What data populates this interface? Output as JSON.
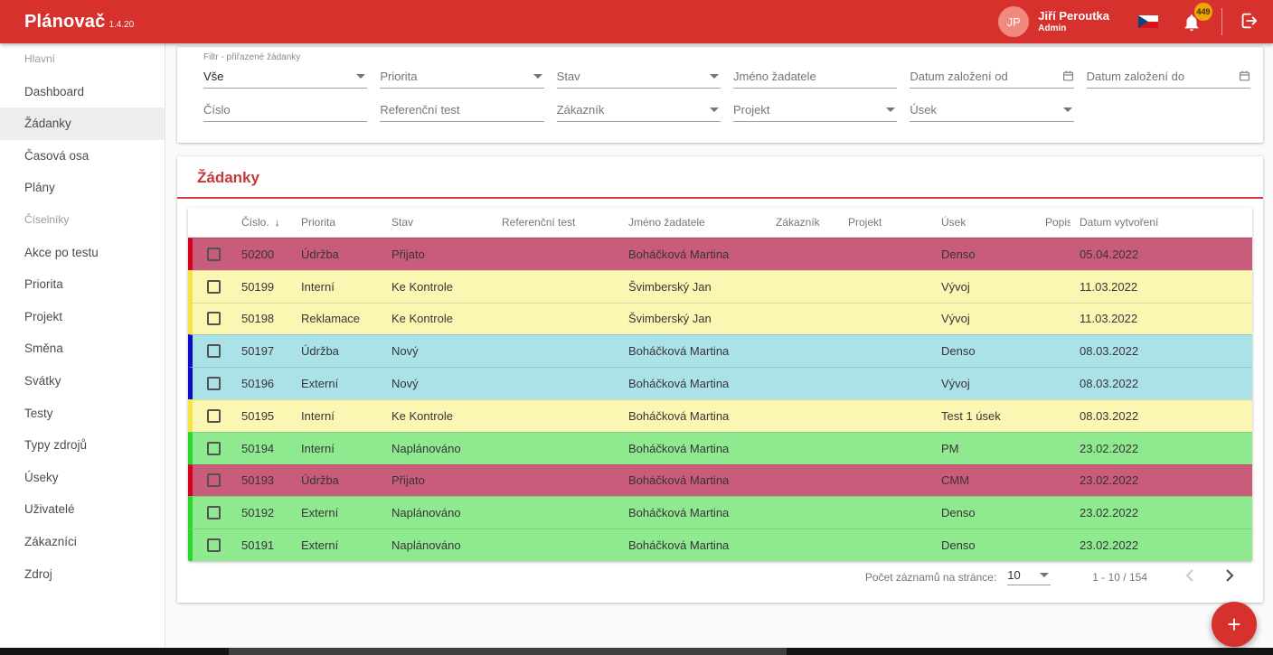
{
  "app": {
    "title": "Plánovač",
    "version": "1.4.20",
    "user": {
      "initials": "JP",
      "name": "Jiří Peroutka",
      "role": "Admin"
    },
    "notifications": "449",
    "language_flag": "czech-flag"
  },
  "colors": {
    "appbar": "#d7312e",
    "section_title": "#c5393c",
    "avatar": "#f0897e",
    "badge": "#efa50a"
  },
  "sidebar": {
    "items": [
      {
        "label": "Hlavní",
        "section": true
      },
      {
        "label": "Dashboard"
      },
      {
        "label": "Žádanky",
        "selected": true
      },
      {
        "label": "Časová osa"
      },
      {
        "label": "Plány"
      },
      {
        "label": "Číselníky",
        "section": true
      },
      {
        "label": "Akce po testu"
      },
      {
        "label": "Priorita"
      },
      {
        "label": "Projekt"
      },
      {
        "label": "Směna"
      },
      {
        "label": "Svátky"
      },
      {
        "label": "Testy"
      },
      {
        "label": "Typy zdrojů"
      },
      {
        "label": "Úseky"
      },
      {
        "label": "Uživatelé"
      },
      {
        "label": "Zákazníci"
      },
      {
        "label": "Zdroj"
      }
    ]
  },
  "filters": {
    "row1": [
      {
        "label": "Filtr - přiřazené žádanky",
        "value": "Vše",
        "icon": "dropdown"
      },
      {
        "placeholder": "Priorita",
        "icon": "dropdown"
      },
      {
        "placeholder": "Stav",
        "icon": "dropdown"
      },
      {
        "placeholder": "Jméno žadatele"
      },
      {
        "placeholder": "Datum založení od",
        "icon": "calendar"
      },
      {
        "placeholder": "Datum založení do",
        "icon": "calendar"
      }
    ],
    "row2": [
      {
        "placeholder": "Číslo"
      },
      {
        "placeholder": "Referenční test"
      },
      {
        "placeholder": "Zákazník",
        "icon": "dropdown"
      },
      {
        "placeholder": "Projekt",
        "icon": "dropdown"
      },
      {
        "placeholder": "Úsek",
        "icon": "dropdown"
      }
    ]
  },
  "table": {
    "title": "Žádanky",
    "columns": [
      "",
      "Číslo.",
      "Priorita",
      "Stav",
      "Referenční test",
      "Jméno žadatele",
      "Zákazník",
      "Projekt",
      "Úsek",
      "Popis",
      "Datum vytvoření"
    ],
    "sorted_column": "Číslo.",
    "sort_direction": "desc",
    "row_colors": {
      "red": {
        "bg": "#c95b7b",
        "border": "#d60021"
      },
      "yellow": {
        "bg": "#fbf7b3",
        "border": "#f2e744"
      },
      "cyan": {
        "bg": "#abe2e7",
        "border": "#0b0bcb"
      },
      "green": {
        "bg": "#8fe98f",
        "border": "#2bd62b"
      }
    },
    "rows": [
      {
        "cislo": "50200",
        "priorita": "Údržba",
        "stav": "Přijato",
        "ref": "",
        "jmeno": "Boháčková Martina",
        "zakaznik": "",
        "projekt": "",
        "usek": "Denso",
        "popis": "",
        "datum": "05.04.2022",
        "color": "red"
      },
      {
        "cislo": "50199",
        "priorita": "Interní",
        "stav": "Ke Kontrole",
        "ref": "",
        "jmeno": "Švimberský Jan",
        "zakaznik": "",
        "projekt": "",
        "usek": "Vývoj",
        "popis": "",
        "datum": "11.03.2022",
        "color": "yellow"
      },
      {
        "cislo": "50198",
        "priorita": "Reklamace",
        "stav": "Ke Kontrole",
        "ref": "",
        "jmeno": "Švimberský Jan",
        "zakaznik": "",
        "projekt": "",
        "usek": "Vývoj",
        "popis": "",
        "datum": "11.03.2022",
        "color": "yellow"
      },
      {
        "cislo": "50197",
        "priorita": "Údržba",
        "stav": "Nový",
        "ref": "",
        "jmeno": "Boháčková Martina",
        "zakaznik": "",
        "projekt": "",
        "usek": "Denso",
        "popis": "",
        "datum": "08.03.2022",
        "color": "cyan"
      },
      {
        "cislo": "50196",
        "priorita": "Externí",
        "stav": "Nový",
        "ref": "",
        "jmeno": "Boháčková Martina",
        "zakaznik": "",
        "projekt": "",
        "usek": "Vývoj",
        "popis": "",
        "datum": "08.03.2022",
        "color": "cyan"
      },
      {
        "cislo": "50195",
        "priorita": "Interní",
        "stav": "Ke Kontrole",
        "ref": "",
        "jmeno": "Boháčková Martina",
        "zakaznik": "",
        "projekt": "",
        "usek": "Test 1 úsek",
        "popis": "",
        "datum": "08.03.2022",
        "color": "yellow"
      },
      {
        "cislo": "50194",
        "priorita": "Interní",
        "stav": "Naplánováno",
        "ref": "",
        "jmeno": "Boháčková Martina",
        "zakaznik": "",
        "projekt": "",
        "usek": "PM",
        "popis": "",
        "datum": "23.02.2022",
        "color": "green"
      },
      {
        "cislo": "50193",
        "priorita": "Údržba",
        "stav": "Přijato",
        "ref": "",
        "jmeno": "Boháčková Martina",
        "zakaznik": "",
        "projekt": "",
        "usek": "CMM",
        "popis": "",
        "datum": "23.02.2022",
        "color": "red"
      },
      {
        "cislo": "50192",
        "priorita": "Externí",
        "stav": "Naplánováno",
        "ref": "",
        "jmeno": "Boháčková Martina",
        "zakaznik": "",
        "projekt": "",
        "usek": "Denso",
        "popis": "",
        "datum": "23.02.2022",
        "color": "green"
      },
      {
        "cislo": "50191",
        "priorita": "Externí",
        "stav": "Naplánováno",
        "ref": "",
        "jmeno": "Boháčková Martina",
        "zakaznik": "",
        "projekt": "",
        "usek": "Denso",
        "popis": "",
        "datum": "23.02.2022",
        "color": "green"
      }
    ]
  },
  "pagination": {
    "label": "Počet záznamů na stránce:",
    "page_size": "10",
    "range": "1 - 10 / 154"
  },
  "fab": {
    "label": "+"
  }
}
